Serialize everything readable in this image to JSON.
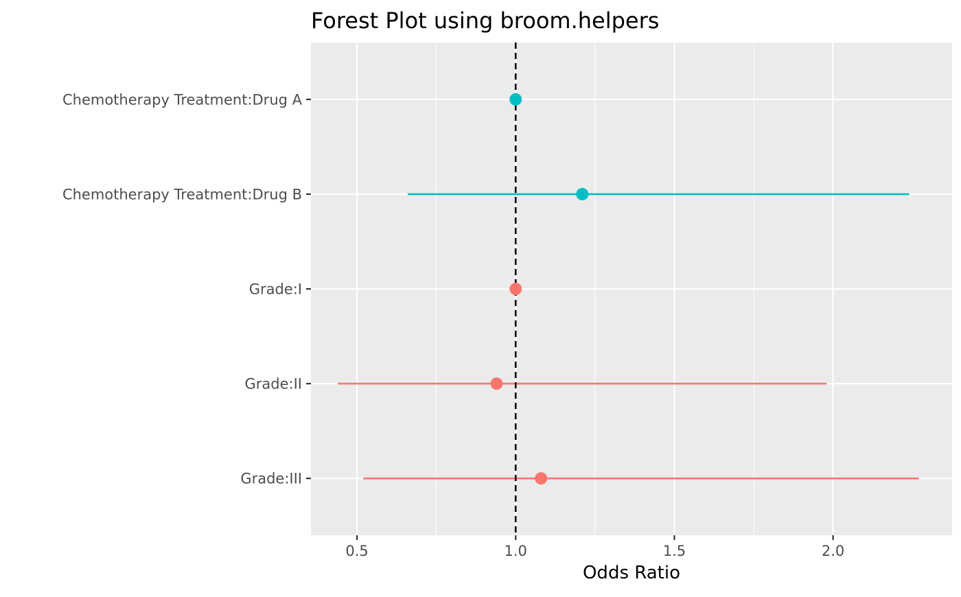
{
  "chart_data": {
    "type": "forest",
    "title": "Forest Plot using broom.helpers",
    "xlabel": "Odds Ratio",
    "ylabel": "",
    "xlim": [
      0.355,
      2.375
    ],
    "x_ticks": [
      0.5,
      1.0,
      1.5,
      2.0
    ],
    "x_tick_labels": [
      "0.5",
      "1.0",
      "1.5",
      "2.0"
    ],
    "reference_line": 1.0,
    "grid": true,
    "legend": "none",
    "colors": {
      "Chemotherapy Treatment": "#00BFC4",
      "Grade": "#F8766D"
    },
    "panel_background": "#EBEBEB",
    "rows": [
      {
        "label": "Chemotherapy Treatment:Drug A",
        "group": "Chemotherapy Treatment",
        "estimate": 1.0,
        "conf_low": null,
        "conf_high": null
      },
      {
        "label": "Chemotherapy Treatment:Drug B",
        "group": "Chemotherapy Treatment",
        "estimate": 1.21,
        "conf_low": 0.66,
        "conf_high": 2.24
      },
      {
        "label": "Grade:I",
        "group": "Grade",
        "estimate": 1.0,
        "conf_low": null,
        "conf_high": null
      },
      {
        "label": "Grade:II",
        "group": "Grade",
        "estimate": 0.94,
        "conf_low": 0.44,
        "conf_high": 1.98
      },
      {
        "label": "Grade:III",
        "group": "Grade",
        "estimate": 1.08,
        "conf_low": 0.52,
        "conf_high": 2.27
      }
    ]
  }
}
